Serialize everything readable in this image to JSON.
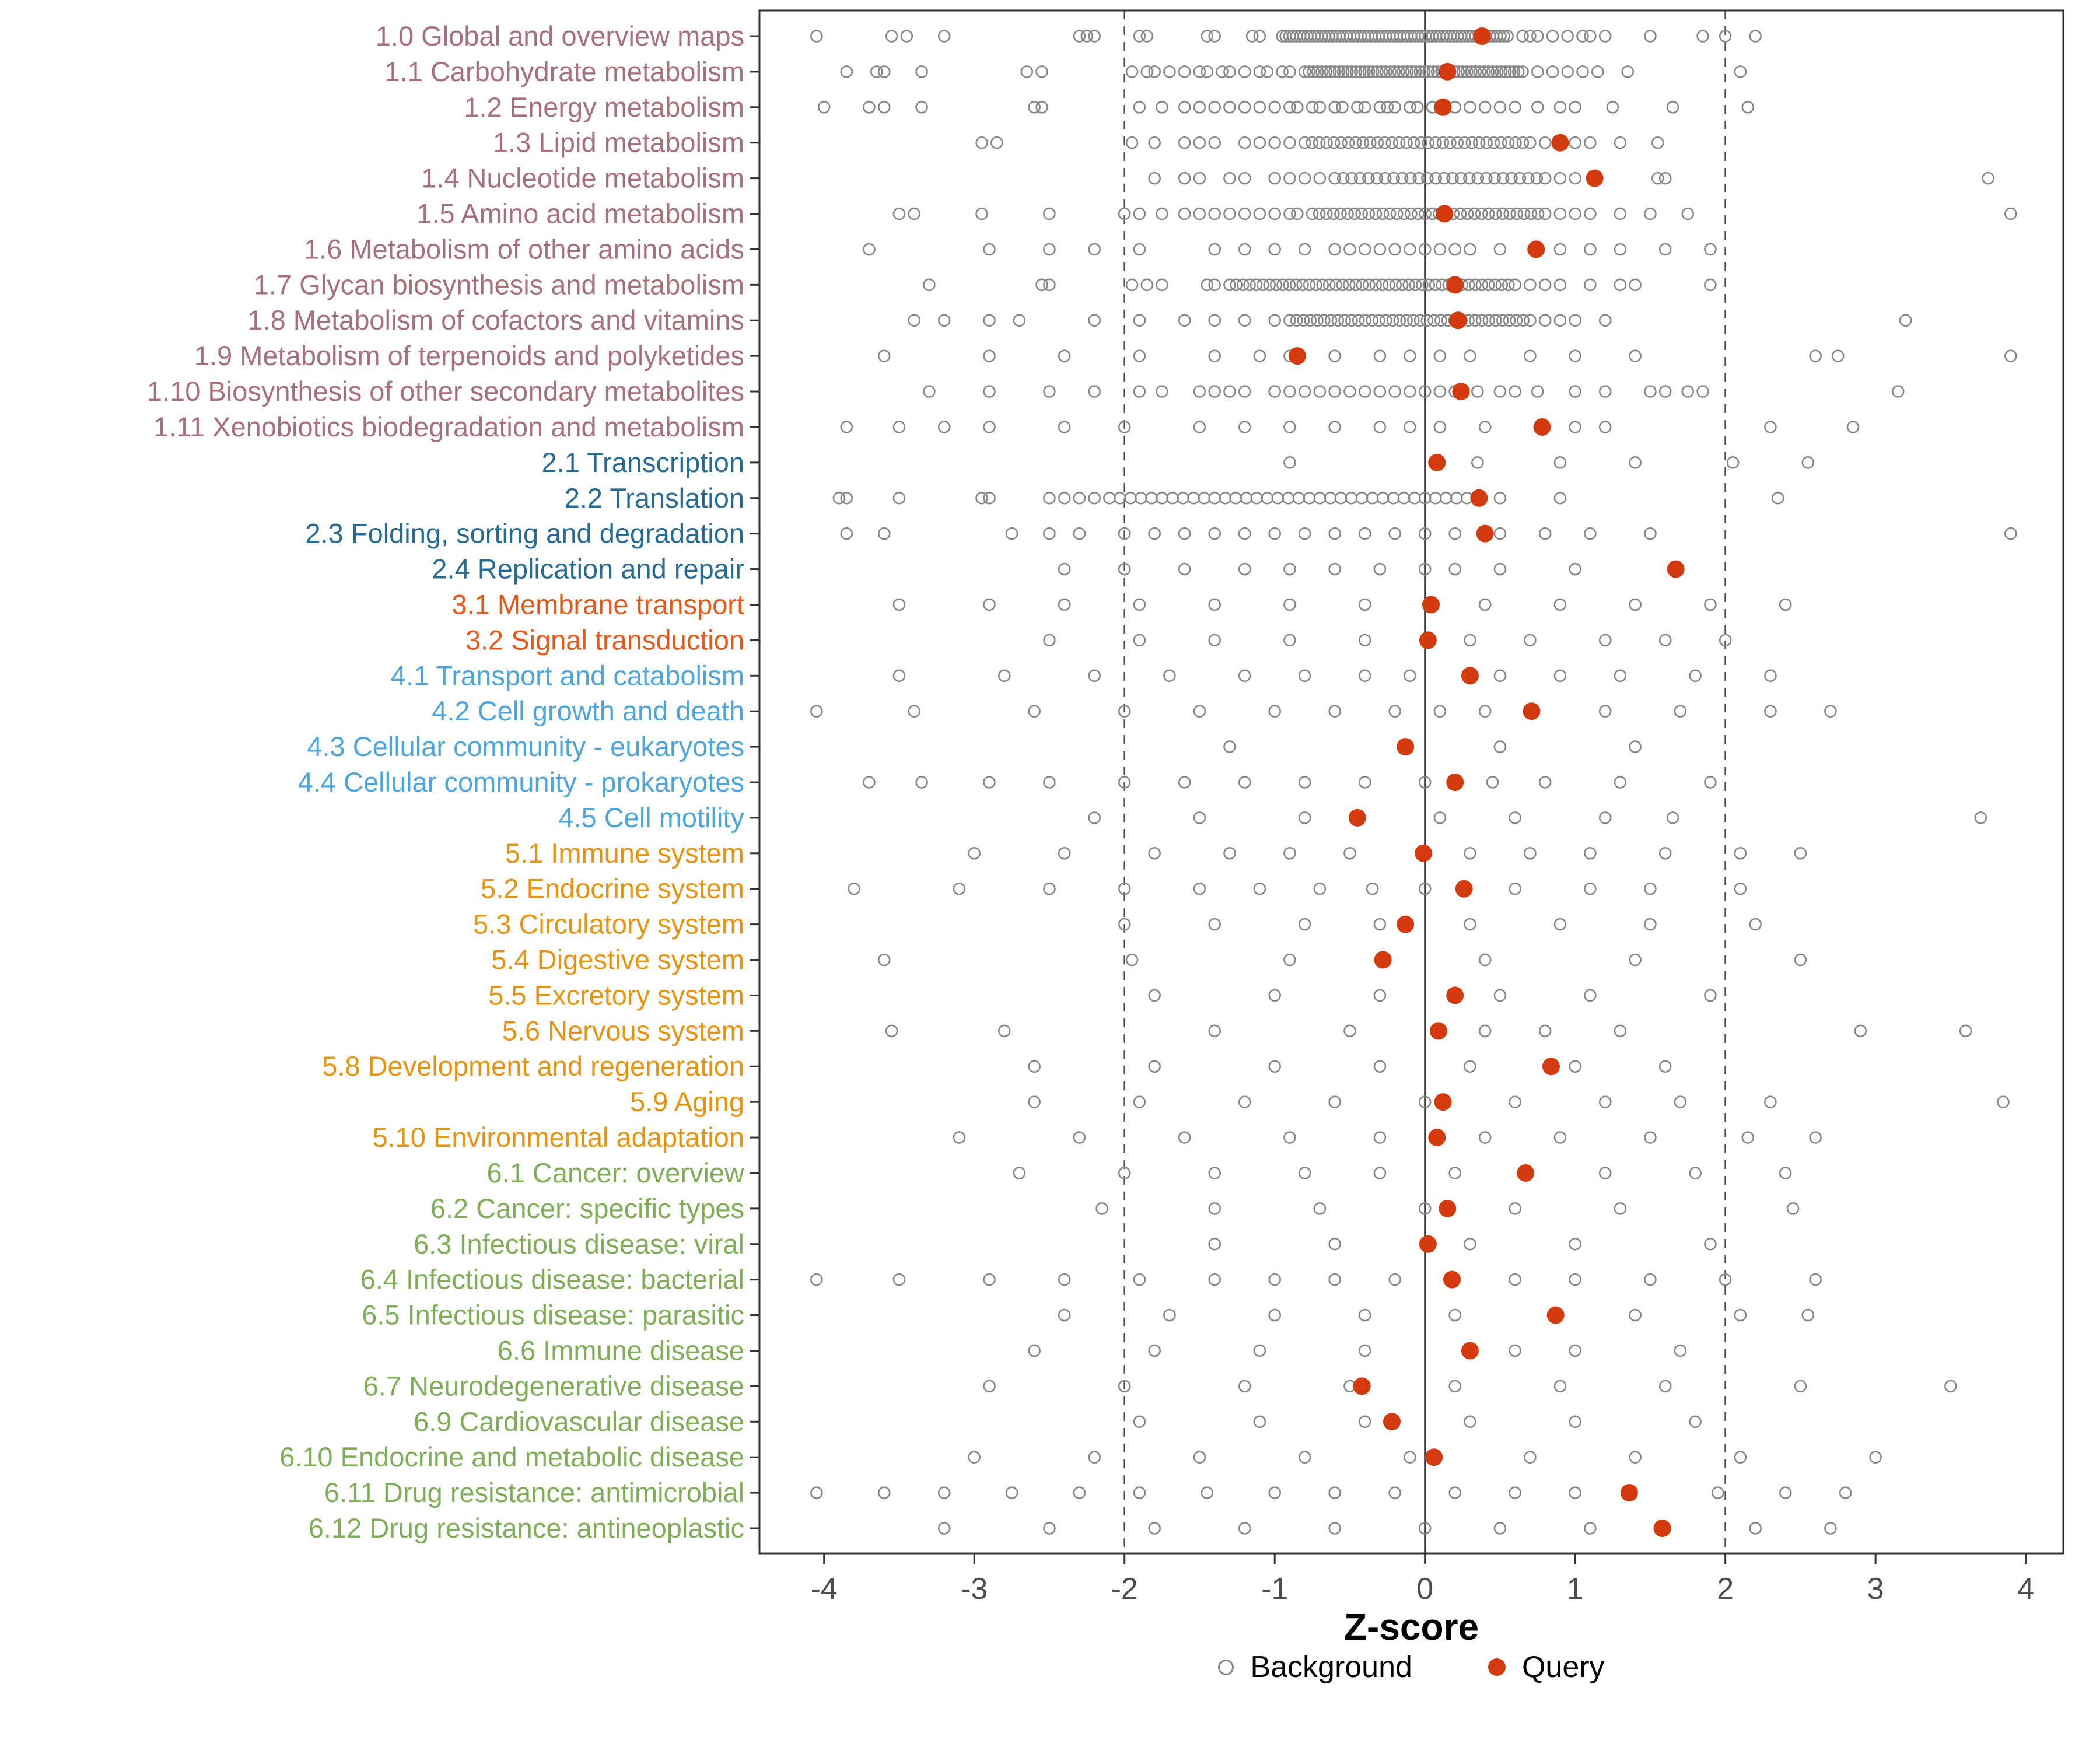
{
  "chart_data": {
    "type": "scatter",
    "title": "",
    "xlabel": "Z-score",
    "xlim": [
      -4.43,
      4.25
    ],
    "x_ticks": [
      -4,
      -3,
      -2,
      -1,
      0,
      1,
      2,
      3,
      4
    ],
    "reference_lines": {
      "solid": [
        0
      ],
      "dashed": [
        -2,
        2
      ]
    },
    "legend": {
      "background": "Background",
      "query": "Query"
    },
    "colors": {
      "query": "#D33A0E",
      "background_stroke": "#878787",
      "axis_text": "#4D4D4D",
      "panel_border": "#333333",
      "ref_line": "#4D4D4D",
      "groups": {
        "g1": "#A6707D",
        "g2": "#276A93",
        "g3": "#E6571A",
        "g4": "#4DA5DC",
        "g5": "#E79312",
        "g6": "#7FAD58"
      }
    },
    "rows": [
      {
        "label": "1.0 Global and overview maps",
        "group": "g1",
        "query": 0.38,
        "background": [
          -4.05,
          -3.55,
          -3.45,
          -3.2,
          -2.3,
          -2.25,
          -2.2,
          -1.9,
          -1.85,
          -1.45,
          -1.4,
          -1.15,
          -1.1,
          0.65,
          0.7,
          0.75,
          0.85,
          0.95,
          1.05,
          1.1,
          1.2,
          1.5,
          1.85,
          2.0,
          2.2
        ],
        "dense": [
          -0.95,
          0.55,
          64
        ]
      },
      {
        "label": "1.1 Carbohydrate metabolism",
        "group": "g1",
        "query": 0.15,
        "background": [
          -3.85,
          -3.65,
          -3.6,
          -3.35,
          -2.65,
          -2.55,
          -1.95,
          -1.85,
          -1.8,
          -1.7,
          -1.6,
          -1.5,
          -1.45,
          -1.35,
          -1.3,
          -1.2,
          -1.1,
          -1.05,
          -0.95,
          -0.9,
          0.75,
          0.85,
          0.95,
          1.05,
          1.15,
          1.35,
          2.1
        ],
        "dense": [
          -0.8,
          0.65,
          52
        ]
      },
      {
        "label": "1.2 Energy metabolism",
        "group": "g1",
        "query": 0.12,
        "background": [
          -4.0,
          -3.7,
          -3.6,
          -3.35,
          -2.6,
          -2.55,
          -1.9,
          -1.75,
          -1.6,
          -1.5,
          -1.4,
          -1.3,
          -1.2,
          -1.1,
          -1.0,
          -0.9,
          -0.85,
          -0.75,
          -0.7,
          -0.6,
          -0.55,
          -0.45,
          -0.4,
          -0.3,
          -0.25,
          -0.2,
          -0.1,
          -0.05,
          0.05,
          0.1,
          0.2,
          0.3,
          0.4,
          0.5,
          0.6,
          0.75,
          0.9,
          1.0,
          1.25,
          1.65,
          2.15
        ]
      },
      {
        "label": "1.3 Lipid metabolism",
        "group": "g1",
        "query": 0.9,
        "background": [
          -2.95,
          -2.85,
          -1.95,
          -1.8,
          -1.6,
          -1.5,
          -1.4,
          -1.2,
          -1.1,
          -1.0,
          -0.9,
          0.8,
          0.9,
          1.0,
          1.1,
          1.3,
          1.55
        ],
        "dense": [
          -0.8,
          0.7,
          32
        ]
      },
      {
        "label": "1.4 Nucleotide metabolism",
        "group": "g1",
        "query": 1.13,
        "background": [
          -1.8,
          -1.6,
          -1.5,
          -1.3,
          -1.2,
          -1.0,
          -0.9,
          -0.8,
          -0.7,
          0.9,
          1.0,
          1.55,
          1.6,
          3.75
        ],
        "dense": [
          -0.6,
          0.8,
          26
        ]
      },
      {
        "label": "1.5 Amino acid metabolism",
        "group": "g1",
        "query": 0.13,
        "background": [
          -3.5,
          -3.4,
          -2.95,
          -2.5,
          -2.0,
          -1.9,
          -1.75,
          -1.6,
          -1.5,
          -1.4,
          -1.3,
          -1.2,
          -1.1,
          -1.0,
          -0.9,
          -0.85,
          0.9,
          1.0,
          1.1,
          1.3,
          1.5,
          1.75,
          3.9
        ],
        "dense": [
          -0.75,
          0.8,
          34
        ]
      },
      {
        "label": "1.6 Metabolism of other amino acids",
        "group": "g1",
        "query": 0.74,
        "background": [
          -3.7,
          -2.9,
          -2.5,
          -2.2,
          -1.9,
          -1.4,
          -1.2,
          -1.0,
          -0.8,
          -0.6,
          -0.5,
          -0.4,
          -0.3,
          -0.2,
          -0.1,
          0.0,
          0.1,
          0.2,
          0.3,
          0.5,
          0.9,
          1.1,
          1.3,
          1.6,
          1.9
        ]
      },
      {
        "label": "1.7 Glycan biosynthesis and metabolism",
        "group": "g1",
        "query": 0.2,
        "background": [
          -3.3,
          -2.55,
          -2.5,
          -1.95,
          -1.85,
          -1.75,
          -1.45,
          -1.4,
          0.7,
          0.8,
          0.9,
          1.1,
          1.3,
          1.4,
          1.9
        ],
        "dense": [
          -1.3,
          0.6,
          44
        ]
      },
      {
        "label": "1.8 Metabolism of cofactors and vitamins",
        "group": "g1",
        "query": 0.22,
        "background": [
          -3.4,
          -3.2,
          -2.9,
          -2.7,
          -2.2,
          -1.9,
          -1.6,
          -1.4,
          -1.2,
          -1.0,
          0.8,
          0.9,
          1.0,
          1.2,
          3.2
        ],
        "dense": [
          -0.9,
          0.7,
          36
        ]
      },
      {
        "label": "1.9 Metabolism of terpenoids and polyketides",
        "group": "g1",
        "query": -0.85,
        "background": [
          -3.6,
          -2.9,
          -2.4,
          -1.9,
          -1.4,
          -1.1,
          -0.9,
          -0.6,
          -0.3,
          -0.1,
          0.1,
          0.3,
          0.7,
          1.0,
          1.4,
          2.6,
          2.75,
          3.9
        ]
      },
      {
        "label": "1.10 Biosynthesis of other secondary metabolites",
        "group": "g1",
        "query": 0.24,
        "background": [
          -3.3,
          -2.9,
          -2.5,
          -2.2,
          -1.9,
          -1.75,
          -1.5,
          -1.4,
          -1.3,
          -1.2,
          -1.0,
          -0.9,
          -0.8,
          -0.7,
          -0.6,
          -0.5,
          -0.4,
          -0.3,
          -0.2,
          -0.1,
          0.0,
          0.1,
          0.2,
          0.35,
          0.5,
          0.6,
          0.75,
          1.0,
          1.2,
          1.5,
          1.6,
          1.75,
          1.85,
          3.15
        ]
      },
      {
        "label": "1.11 Xenobiotics biodegradation and metabolism",
        "group": "g1",
        "query": 0.78,
        "background": [
          -3.85,
          -3.5,
          -3.2,
          -2.9,
          -2.4,
          -2.0,
          -1.5,
          -1.2,
          -0.9,
          -0.6,
          -0.3,
          -0.1,
          0.1,
          0.4,
          1.0,
          1.2,
          2.3,
          2.85
        ]
      },
      {
        "label": "2.1 Transcription",
        "group": "g2",
        "query": 0.08,
        "background": [
          -0.9,
          0.35,
          0.9,
          1.4,
          2.05,
          2.55
        ]
      },
      {
        "label": "2.2 Translation",
        "group": "g2",
        "query": 0.36,
        "background": [
          -3.9,
          -3.85,
          -3.5,
          -2.95,
          -2.9,
          -2.5,
          -2.4,
          -2.3,
          -2.2,
          0.5,
          0.9,
          2.35
        ],
        "dense": [
          -2.1,
          0.35,
          36
        ]
      },
      {
        "label": "2.3 Folding, sorting and degradation",
        "group": "g2",
        "query": 0.4,
        "background": [
          -3.85,
          -3.6,
          -2.75,
          -2.5,
          -2.3,
          -2.0,
          -1.8,
          -1.6,
          -1.4,
          -1.2,
          -1.0,
          -0.8,
          -0.6,
          -0.4,
          -0.2,
          0.0,
          0.2,
          0.5,
          0.8,
          1.1,
          1.5,
          3.9
        ]
      },
      {
        "label": "2.4 Replication and repair",
        "group": "g2",
        "query": 1.67,
        "background": [
          -2.4,
          -2.0,
          -1.6,
          -1.2,
          -0.9,
          -0.6,
          -0.3,
          0.0,
          0.2,
          0.5,
          1.0
        ]
      },
      {
        "label": "3.1 Membrane transport",
        "group": "g3",
        "query": 0.04,
        "background": [
          -3.5,
          -2.9,
          -2.4,
          -1.9,
          -1.4,
          -0.9,
          -0.4,
          0.4,
          0.9,
          1.4,
          1.9,
          2.4
        ]
      },
      {
        "label": "3.2 Signal transduction",
        "group": "g3",
        "query": 0.02,
        "background": [
          -2.5,
          -1.9,
          -1.4,
          -0.9,
          -0.4,
          0.3,
          0.7,
          1.2,
          1.6,
          2.0
        ]
      },
      {
        "label": "4.1 Transport and catabolism",
        "group": "g4",
        "query": 0.3,
        "background": [
          -3.5,
          -2.8,
          -2.2,
          -1.7,
          -1.2,
          -0.8,
          -0.4,
          -0.1,
          0.5,
          0.9,
          1.3,
          1.8,
          2.3
        ]
      },
      {
        "label": "4.2 Cell growth and death",
        "group": "g4",
        "query": 0.71,
        "background": [
          -4.05,
          -3.4,
          -2.6,
          -2.0,
          -1.5,
          -1.0,
          -0.6,
          -0.2,
          0.1,
          0.4,
          1.2,
          1.7,
          2.3,
          2.7
        ]
      },
      {
        "label": "4.3 Cellular community - eukaryotes",
        "group": "g4",
        "query": -0.13,
        "background": [
          -1.3,
          0.5,
          1.4
        ]
      },
      {
        "label": "4.4 Cellular community - prokaryotes",
        "group": "g4",
        "query": 0.2,
        "background": [
          -3.7,
          -3.35,
          -2.9,
          -2.5,
          -2.0,
          -1.6,
          -1.2,
          -0.8,
          -0.4,
          0.0,
          0.45,
          0.8,
          1.3,
          1.9
        ]
      },
      {
        "label": "4.5 Cell motility",
        "group": "g4",
        "query": -0.45,
        "background": [
          -2.2,
          -1.5,
          -0.8,
          0.1,
          0.6,
          1.2,
          1.65,
          3.7
        ]
      },
      {
        "label": "5.1 Immune system",
        "group": "g5",
        "query": -0.01,
        "background": [
          -3.0,
          -2.4,
          -1.8,
          -1.3,
          -0.9,
          -0.5,
          0.3,
          0.7,
          1.1,
          1.6,
          2.1,
          2.5
        ]
      },
      {
        "label": "5.2 Endocrine system",
        "group": "g5",
        "query": 0.26,
        "background": [
          -3.8,
          -3.1,
          -2.5,
          -2.0,
          -1.5,
          -1.1,
          -0.7,
          -0.35,
          0.0,
          0.6,
          1.1,
          1.5,
          2.1
        ]
      },
      {
        "label": "5.3 Circulatory system",
        "group": "g5",
        "query": -0.13,
        "background": [
          -2.0,
          -1.4,
          -0.8,
          -0.3,
          0.3,
          0.9,
          1.5,
          2.2
        ]
      },
      {
        "label": "5.4 Digestive system",
        "group": "g5",
        "query": -0.28,
        "background": [
          -3.6,
          -1.95,
          -0.9,
          0.4,
          1.4,
          2.5
        ]
      },
      {
        "label": "5.5 Excretory system",
        "group": "g5",
        "query": 0.2,
        "background": [
          -1.8,
          -1.0,
          -0.3,
          0.5,
          1.1,
          1.9
        ]
      },
      {
        "label": "5.6 Nervous system",
        "group": "g5",
        "query": 0.09,
        "background": [
          -3.55,
          -2.8,
          -1.4,
          -0.5,
          0.4,
          0.8,
          1.3,
          2.9,
          3.6
        ]
      },
      {
        "label": "5.8 Development and regeneration",
        "group": "g5",
        "query": 0.84,
        "background": [
          -2.6,
          -1.8,
          -1.0,
          -0.3,
          0.3,
          1.0,
          1.6
        ]
      },
      {
        "label": "5.9 Aging",
        "group": "g5",
        "query": 0.12,
        "background": [
          -2.6,
          -1.9,
          -1.2,
          -0.6,
          0.0,
          0.6,
          1.2,
          1.7,
          2.3,
          3.85
        ]
      },
      {
        "label": "5.10 Environmental adaptation",
        "group": "g5",
        "query": 0.08,
        "background": [
          -3.1,
          -2.3,
          -1.6,
          -0.9,
          -0.3,
          0.4,
          0.9,
          1.5,
          2.15,
          2.6
        ]
      },
      {
        "label": "6.1 Cancer: overview",
        "group": "g6",
        "query": 0.67,
        "background": [
          -2.7,
          -2.0,
          -1.4,
          -0.8,
          -0.3,
          0.2,
          1.2,
          1.8,
          2.4
        ]
      },
      {
        "label": "6.2 Cancer: specific types",
        "group": "g6",
        "query": 0.15,
        "background": [
          -2.15,
          -1.4,
          -0.7,
          0.0,
          0.6,
          1.3,
          2.45
        ]
      },
      {
        "label": "6.3 Infectious disease: viral",
        "group": "g6",
        "query": 0.02,
        "background": [
          -1.4,
          -0.6,
          0.3,
          1.0,
          1.9
        ]
      },
      {
        "label": "6.4 Infectious disease: bacterial",
        "group": "g6",
        "query": 0.18,
        "background": [
          -4.05,
          -3.5,
          -2.9,
          -2.4,
          -1.9,
          -1.4,
          -1.0,
          -0.6,
          -0.2,
          0.6,
          1.0,
          1.5,
          2.0,
          2.6
        ]
      },
      {
        "label": "6.5 Infectious disease: parasitic",
        "group": "g6",
        "query": 0.87,
        "background": [
          -2.4,
          -1.7,
          -1.0,
          -0.4,
          0.2,
          1.4,
          2.1,
          2.55
        ]
      },
      {
        "label": "6.6 Immune disease",
        "group": "g6",
        "query": 0.3,
        "background": [
          -2.6,
          -1.8,
          -1.1,
          -0.4,
          0.6,
          1.0,
          1.7
        ]
      },
      {
        "label": "6.7 Neurodegenerative disease",
        "group": "g6",
        "query": -0.42,
        "background": [
          -2.9,
          -2.0,
          -1.2,
          -0.5,
          0.2,
          0.9,
          1.6,
          2.5,
          3.5
        ]
      },
      {
        "label": "6.9 Cardiovascular disease",
        "group": "g6",
        "query": -0.22,
        "background": [
          -1.9,
          -1.1,
          -0.4,
          0.3,
          1.0,
          1.8
        ]
      },
      {
        "label": "6.10 Endocrine and metabolic disease",
        "group": "g6",
        "query": 0.06,
        "background": [
          -3.0,
          -2.2,
          -1.5,
          -0.8,
          -0.1,
          0.7,
          1.4,
          2.1,
          3.0
        ]
      },
      {
        "label": "6.11 Drug resistance: antimicrobial",
        "group": "g6",
        "query": 1.36,
        "background": [
          -4.05,
          -3.6,
          -3.2,
          -2.75,
          -2.3,
          -1.9,
          -1.45,
          -1.0,
          -0.6,
          -0.2,
          0.2,
          0.6,
          1.0,
          1.95,
          2.4,
          2.8
        ]
      },
      {
        "label": "6.12 Drug resistance: antineoplastic",
        "group": "g6",
        "query": 1.58,
        "background": [
          -3.2,
          -2.5,
          -1.8,
          -1.2,
          -0.6,
          0.0,
          0.5,
          1.1,
          2.2,
          2.7
        ]
      }
    ]
  }
}
